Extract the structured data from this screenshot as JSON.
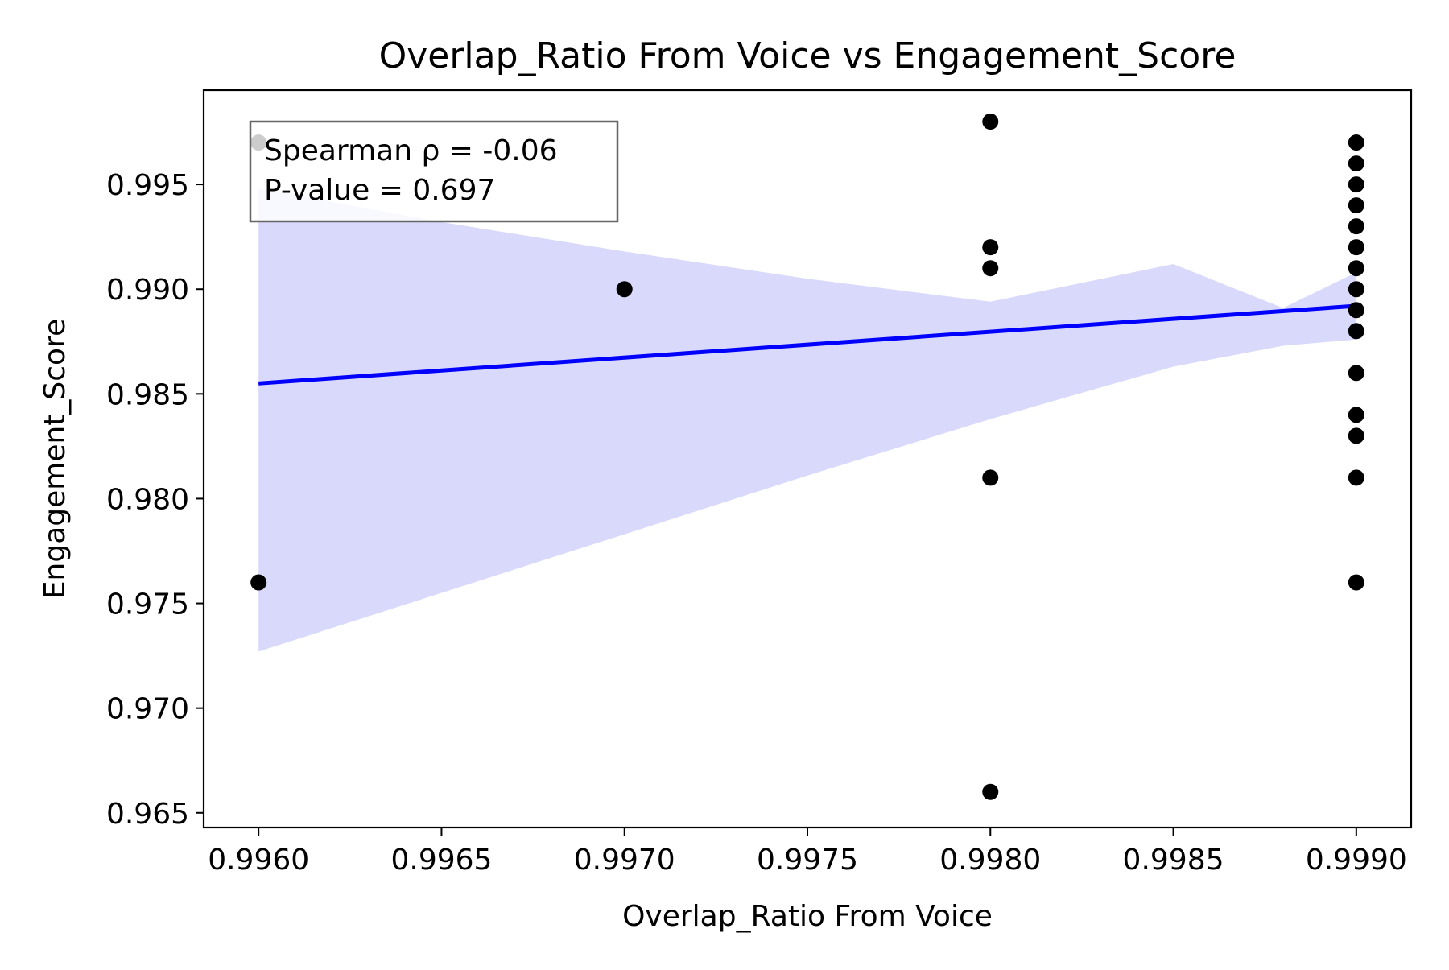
{
  "chart_data": {
    "type": "scatter",
    "title": "Overlap_Ratio From Voice vs Engagement_Score",
    "xlabel": "Overlap_Ratio From Voice",
    "ylabel": "Engagement_Score",
    "xlim": [
      0.99585,
      0.99915
    ],
    "ylim": [
      0.9643,
      0.9995
    ],
    "xticks": [
      0.996,
      0.9965,
      0.997,
      0.9975,
      0.998,
      0.9985,
      0.999
    ],
    "xtick_labels": [
      "0.9960",
      "0.9965",
      "0.9970",
      "0.9975",
      "0.9980",
      "0.9985",
      "0.9990"
    ],
    "yticks": [
      0.965,
      0.97,
      0.975,
      0.98,
      0.985,
      0.99,
      0.995
    ],
    "ytick_labels": [
      "0.965",
      "0.970",
      "0.975",
      "0.980",
      "0.985",
      "0.990",
      "0.995"
    ],
    "grid": false,
    "points": [
      {
        "x": 0.996,
        "y": 0.997
      },
      {
        "x": 0.996,
        "y": 0.976
      },
      {
        "x": 0.997,
        "y": 0.99
      },
      {
        "x": 0.998,
        "y": 0.998
      },
      {
        "x": 0.998,
        "y": 0.992
      },
      {
        "x": 0.998,
        "y": 0.991
      },
      {
        "x": 0.998,
        "y": 0.981
      },
      {
        "x": 0.998,
        "y": 0.966
      },
      {
        "x": 0.999,
        "y": 0.997
      },
      {
        "x": 0.999,
        "y": 0.996
      },
      {
        "x": 0.999,
        "y": 0.995
      },
      {
        "x": 0.999,
        "y": 0.994
      },
      {
        "x": 0.999,
        "y": 0.993
      },
      {
        "x": 0.999,
        "y": 0.992
      },
      {
        "x": 0.999,
        "y": 0.991
      },
      {
        "x": 0.999,
        "y": 0.99
      },
      {
        "x": 0.999,
        "y": 0.989
      },
      {
        "x": 0.999,
        "y": 0.988
      },
      {
        "x": 0.999,
        "y": 0.986
      },
      {
        "x": 0.999,
        "y": 0.984
      },
      {
        "x": 0.999,
        "y": 0.983
      },
      {
        "x": 0.999,
        "y": 0.981
      },
      {
        "x": 0.999,
        "y": 0.976
      }
    ],
    "regression_line": {
      "x": [
        0.996,
        0.999
      ],
      "y": [
        0.9855,
        0.9892
      ]
    },
    "confidence_band": {
      "x": [
        0.996,
        0.9965,
        0.997,
        0.9975,
        0.998,
        0.9985,
        0.9988,
        0.999
      ],
      "upper": [
        0.9948,
        0.9932,
        0.9918,
        0.9905,
        0.9894,
        0.9912,
        0.9891,
        0.9908
      ],
      "lower": [
        0.9727,
        0.9755,
        0.9783,
        0.9811,
        0.9838,
        0.9863,
        0.9873,
        0.9876
      ]
    },
    "annotation": {
      "lines": [
        "Spearman ρ = -0.06",
        "P-value = 0.697"
      ],
      "placement": "top-left"
    },
    "colors": {
      "points": "#000000",
      "line": "#0000ff",
      "band": "#d9d9fc",
      "annotation_border": "#666666"
    }
  }
}
